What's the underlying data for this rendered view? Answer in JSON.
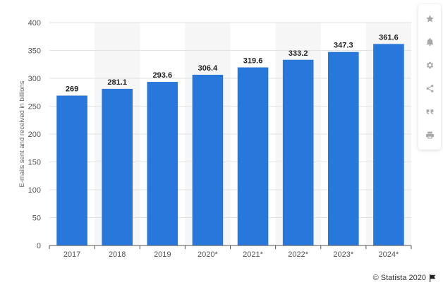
{
  "chart_data": {
    "type": "bar",
    "categories": [
      "2017",
      "2018",
      "2019",
      "2020*",
      "2021*",
      "2022*",
      "2023*",
      "2024*"
    ],
    "values": [
      269,
      281.1,
      293.6,
      306.4,
      319.6,
      333.2,
      347.3,
      361.6
    ],
    "value_labels": [
      "269",
      "281.1",
      "293.6",
      "306.4",
      "319.6",
      "333.2",
      "347.3",
      "361.6"
    ],
    "ylabel": "E-mails sent and received in billions",
    "ylim": [
      0,
      400
    ],
    "yticks": [
      0,
      50,
      100,
      150,
      200,
      250,
      300,
      350,
      400
    ],
    "ytick_labels": [
      "0",
      "50",
      "100",
      "150",
      "200",
      "250",
      "300",
      "350",
      "400"
    ],
    "grid": true,
    "colors": {
      "bar": "#2878dc",
      "band": "#f6f6f6",
      "grid": "#e2e2e2"
    }
  },
  "toolbar": {
    "icons": [
      "star-icon",
      "bell-icon",
      "gear-icon",
      "share-icon",
      "quote-icon",
      "print-icon"
    ]
  },
  "credit": {
    "text": "© Statista 2020"
  }
}
